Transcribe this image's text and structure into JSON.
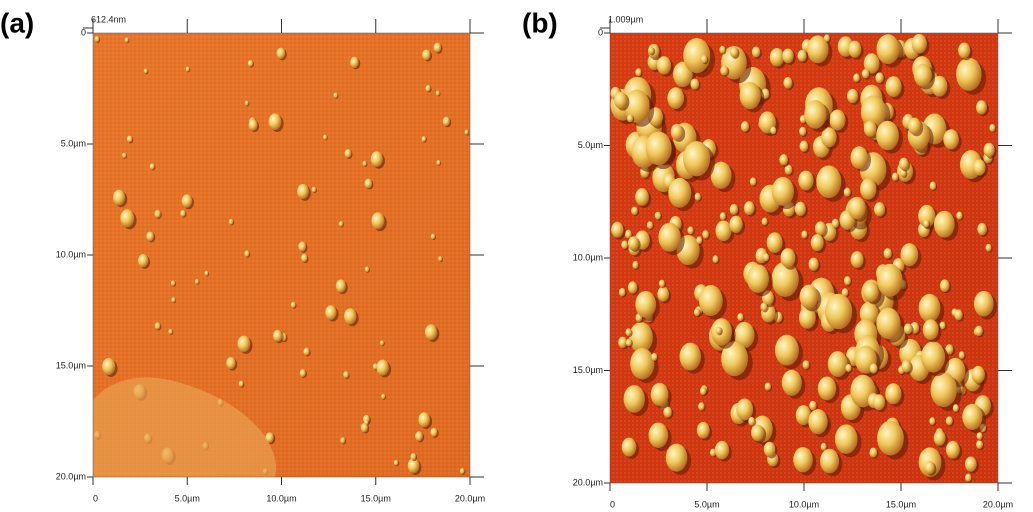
{
  "panels": [
    {
      "label": "(a)",
      "scale": "612.4nm",
      "y_ticks": [
        "0",
        "5.0µm",
        "10.0µm",
        "15.0µm",
        "20.0µm"
      ],
      "x_ticks": [
        "0",
        "5.0µm",
        "10.0µm",
        "15.0µm",
        "20.0µm"
      ]
    },
    {
      "label": "(b)",
      "scale": "1.009µm",
      "y_ticks": [
        "0",
        "5.0µm",
        "10.0µm",
        "15.0µm",
        "20.0µm"
      ],
      "x_ticks": [
        "0",
        "5.0µm",
        "10.0µm",
        "15.0µm",
        "20.0µm"
      ]
    }
  ]
}
